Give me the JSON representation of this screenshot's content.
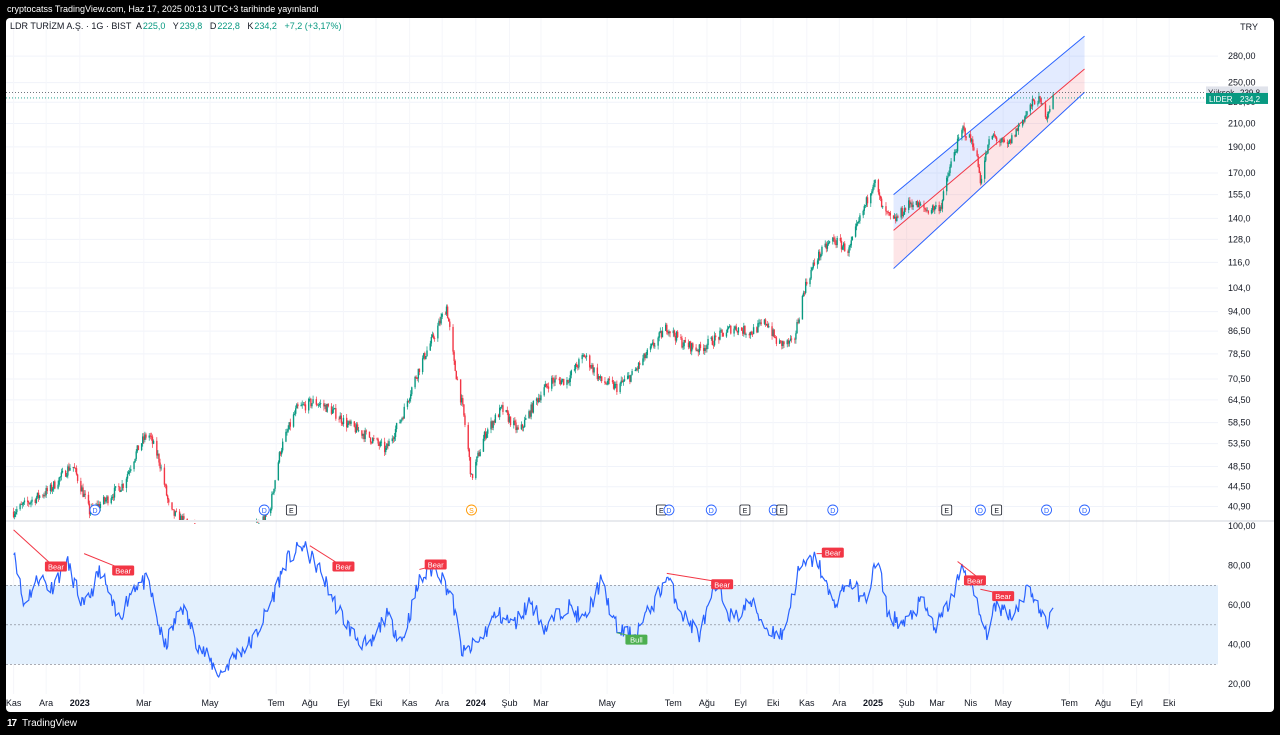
{
  "header": {
    "publish_line": "cryptocatss TradingView.com, Haz 17, 2025 00:13 UTC+3 tarihinde yayınlandı"
  },
  "legend": {
    "symbol": "LDR TURİZM A.Ş. · 1G · BIST",
    "open_label": "A",
    "open_value": "225,0",
    "high_label": "Y",
    "high_value": "239,8",
    "low_label": "D",
    "low_value": "222,8",
    "close_label": "K",
    "close_value": "234,2",
    "change": "+7,2 (+3,17%)"
  },
  "price_axis": {
    "currency": "TRY",
    "high_tag_label": "Yüksek",
    "high_tag_value": "239,8",
    "last_tag_label": "LIDER",
    "last_tag_value": "234,2"
  },
  "footer": {
    "brand": "TradingView",
    "logo": "17"
  },
  "colors": {
    "up": "#089981",
    "down": "#f23645",
    "rsi_line": "#2962ff",
    "channel_upper": "#2962ff",
    "channel_lower": "#f23645",
    "band_fill": "#e3f0fd",
    "bull": "#4caf50",
    "bear": "#f23645"
  },
  "chart_data": [
    {
      "type": "candlestick",
      "title": "",
      "y_scale": "log",
      "y_ticks": [
        280.0,
        250.0,
        230.0,
        210.0,
        190.0,
        170.0,
        155.0,
        140.0,
        128.0,
        116.0,
        104.0,
        94.0,
        86.5,
        78.5,
        70.5,
        64.5,
        58.5,
        53.5,
        48.5,
        44.5,
        40.9
      ],
      "y_tick_labels": [
        "280,00",
        "250,00",
        "230,00",
        "210,00",
        "190,00",
        "170,00",
        "155,0",
        "140,0",
        "128,0",
        "116,0",
        "104,0",
        "94,00",
        "86,50",
        "78,50",
        "70,50",
        "64,50",
        "58,50",
        "53,50",
        "48,50",
        "44,50",
        "40,90"
      ],
      "x_ticks": [
        "Kas",
        "Ara",
        "2023",
        "Mar",
        "May",
        "Tem",
        "Ağu",
        "Eyl",
        "Eki",
        "Kas",
        "Ara",
        "2024",
        "Şub",
        "Mar",
        "May",
        "Tem",
        "Ağu",
        "Eyl",
        "Eki",
        "Kas",
        "Ara",
        "2025",
        "Şub",
        "Mar",
        "Nis",
        "May",
        "Tem",
        "Ağu",
        "Eyl",
        "Eki"
      ],
      "price_path": [
        [
          "2022-11-01",
          40
        ],
        [
          "2022-12-05",
          44
        ],
        [
          "2022-12-25",
          49
        ],
        [
          "2023-01-10",
          40
        ],
        [
          "2023-01-25",
          42
        ],
        [
          "2023-02-10",
          45
        ],
        [
          "2023-02-25",
          53
        ],
        [
          "2023-03-05",
          56
        ],
        [
          "2023-03-15",
          50
        ],
        [
          "2023-03-25",
          40
        ],
        [
          "2023-04-25",
          36
        ],
        [
          "2023-05-25",
          34
        ],
        [
          "2023-06-25",
          40
        ],
        [
          "2023-07-05",
          52
        ],
        [
          "2023-07-20",
          62
        ],
        [
          "2023-08-05",
          64
        ],
        [
          "2023-08-20",
          62
        ],
        [
          "2023-09-05",
          58
        ],
        [
          "2023-09-25",
          55
        ],
        [
          "2023-10-10",
          52
        ],
        [
          "2023-10-25",
          60
        ],
        [
          "2023-11-10",
          74
        ],
        [
          "2023-11-25",
          86
        ],
        [
          "2023-12-05",
          96
        ],
        [
          "2023-12-12",
          75
        ],
        [
          "2023-12-20",
          62
        ],
        [
          "2023-12-28",
          46
        ],
        [
          "2024-01-10",
          56
        ],
        [
          "2024-01-25",
          62
        ],
        [
          "2024-02-10",
          56
        ],
        [
          "2024-02-25",
          64
        ],
        [
          "2024-03-10",
          70
        ],
        [
          "2024-03-25",
          70
        ],
        [
          "2024-04-10",
          78
        ],
        [
          "2024-04-25",
          70
        ],
        [
          "2024-05-10",
          68
        ],
        [
          "2024-05-25",
          72
        ],
        [
          "2024-06-10",
          80
        ],
        [
          "2024-06-25",
          88
        ],
        [
          "2024-07-10",
          82
        ],
        [
          "2024-07-25",
          80
        ],
        [
          "2024-08-10",
          84
        ],
        [
          "2024-08-25",
          88
        ],
        [
          "2024-09-10",
          86
        ],
        [
          "2024-09-25",
          90
        ],
        [
          "2024-10-05",
          82
        ],
        [
          "2024-10-20",
          82
        ],
        [
          "2024-10-30",
          104
        ],
        [
          "2024-11-10",
          118
        ],
        [
          "2024-11-25",
          128
        ],
        [
          "2024-12-10",
          122
        ],
        [
          "2024-12-25",
          148
        ],
        [
          "2025-01-02",
          165
        ],
        [
          "2025-01-10",
          145
        ],
        [
          "2025-01-20",
          138
        ],
        [
          "2025-02-05",
          150
        ],
        [
          "2025-02-20",
          145
        ],
        [
          "2025-03-05",
          148
        ],
        [
          "2025-03-15",
          180
        ],
        [
          "2025-03-25",
          205
        ],
        [
          "2025-04-05",
          190
        ],
        [
          "2025-04-10",
          165
        ],
        [
          "2025-04-20",
          200
        ],
        [
          "2025-05-05",
          190
        ],
        [
          "2025-05-20",
          215
        ],
        [
          "2025-06-01",
          235
        ],
        [
          "2025-06-10",
          218
        ],
        [
          "2025-06-16",
          234.2
        ]
      ],
      "last": 234.2,
      "high": 239.8,
      "channel": {
        "start_date": "2025-01-20",
        "end_date": "2025-07-15",
        "upper": [
          155,
          305
        ],
        "middle": [
          133,
          265
        ],
        "lower": [
          113,
          240
        ]
      },
      "event_markers": [
        {
          "label": "D",
          "date": "2023-01-15"
        },
        {
          "label": "D",
          "date": "2023-06-20"
        },
        {
          "label": "E",
          "date": "2023-07-15"
        },
        {
          "label": "S",
          "date": "2023-12-28"
        },
        {
          "label": "E",
          "date": "2024-06-20"
        },
        {
          "label": "D",
          "date": "2024-06-27"
        },
        {
          "label": "D",
          "date": "2024-08-05"
        },
        {
          "label": "E",
          "date": "2024-09-05"
        },
        {
          "label": "D",
          "date": "2024-10-02"
        },
        {
          "label": "E",
          "date": "2024-10-09"
        },
        {
          "label": "D",
          "date": "2024-11-25"
        },
        {
          "label": "E",
          "date": "2025-03-10"
        },
        {
          "label": "D",
          "date": "2025-04-10"
        },
        {
          "label": "E",
          "date": "2025-04-25"
        },
        {
          "label": "D",
          "date": "2025-06-10"
        },
        {
          "label": "D",
          "date": "2025-07-15"
        }
      ]
    },
    {
      "type": "line",
      "title": "",
      "y_ticks": [
        100.0,
        80.0,
        60.0,
        40.0,
        20.0
      ],
      "y_tick_labels": [
        "100,00",
        "80,00",
        "60,00",
        "40,00",
        "20,00"
      ],
      "band": [
        30,
        70
      ],
      "midline": 50,
      "rsi_path": [
        [
          "2022-11-01",
          90
        ],
        [
          "2022-11-10",
          60
        ],
        [
          "2022-11-25",
          75
        ],
        [
          "2022-12-05",
          68
        ],
        [
          "2022-12-20",
          82
        ],
        [
          "2023-01-05",
          58
        ],
        [
          "2023-01-20",
          78
        ],
        [
          "2023-02-05",
          52
        ],
        [
          "2023-02-20",
          70
        ],
        [
          "2023-03-05",
          72
        ],
        [
          "2023-03-20",
          38
        ],
        [
          "2023-04-05",
          60
        ],
        [
          "2023-04-20",
          40
        ],
        [
          "2023-05-10",
          25
        ],
        [
          "2023-05-25",
          35
        ],
        [
          "2023-06-10",
          42
        ],
        [
          "2023-06-25",
          60
        ],
        [
          "2023-07-10",
          82
        ],
        [
          "2023-07-25",
          90
        ],
        [
          "2023-08-10",
          78
        ],
        [
          "2023-08-25",
          60
        ],
        [
          "2023-09-10",
          45
        ],
        [
          "2023-09-25",
          38
        ],
        [
          "2023-10-10",
          55
        ],
        [
          "2023-10-25",
          42
        ],
        [
          "2023-11-10",
          72
        ],
        [
          "2023-11-25",
          80
        ],
        [
          "2023-12-10",
          64
        ],
        [
          "2023-12-20",
          35
        ],
        [
          "2024-01-05",
          42
        ],
        [
          "2024-01-20",
          56
        ],
        [
          "2024-02-05",
          50
        ],
        [
          "2024-02-20",
          62
        ],
        [
          "2024-03-05",
          48
        ],
        [
          "2024-03-25",
          60
        ],
        [
          "2024-04-10",
          52
        ],
        [
          "2024-04-25",
          72
        ],
        [
          "2024-05-10",
          48
        ],
        [
          "2024-05-25",
          44
        ],
        [
          "2024-06-10",
          58
        ],
        [
          "2024-06-25",
          74
        ],
        [
          "2024-07-10",
          55
        ],
        [
          "2024-07-25",
          45
        ],
        [
          "2024-08-10",
          70
        ],
        [
          "2024-08-25",
          52
        ],
        [
          "2024-09-10",
          62
        ],
        [
          "2024-09-25",
          48
        ],
        [
          "2024-10-10",
          45
        ],
        [
          "2024-10-25",
          78
        ],
        [
          "2024-11-10",
          84
        ],
        [
          "2024-11-25",
          60
        ],
        [
          "2024-12-10",
          72
        ],
        [
          "2024-12-25",
          62
        ],
        [
          "2025-01-05",
          84
        ],
        [
          "2025-01-15",
          55
        ],
        [
          "2025-01-30",
          50
        ],
        [
          "2025-02-15",
          62
        ],
        [
          "2025-02-28",
          48
        ],
        [
          "2025-03-15",
          64
        ],
        [
          "2025-03-25",
          80
        ],
        [
          "2025-04-05",
          64
        ],
        [
          "2025-04-15",
          45
        ],
        [
          "2025-04-25",
          60
        ],
        [
          "2025-05-10",
          55
        ],
        [
          "2025-05-25",
          70
        ],
        [
          "2025-06-05",
          55
        ],
        [
          "2025-06-10",
          50
        ],
        [
          "2025-06-16",
          58
        ]
      ],
      "divergences": [
        {
          "kind": "Bear",
          "from": [
            "2022-11-01",
            98
          ],
          "to": [
            "2022-12-05",
            81
          ],
          "label_date": "2022-12-10",
          "label_value": 80
        },
        {
          "kind": "Bear",
          "from": [
            "2023-01-05",
            86
          ],
          "to": [
            "2023-02-10",
            78
          ],
          "label_date": "2023-02-10",
          "label_value": 78
        },
        {
          "kind": "Bear",
          "from": [
            "2023-08-01",
            90
          ],
          "to": [
            "2023-08-30",
            80
          ],
          "label_date": "2023-09-01",
          "label_value": 80
        },
        {
          "kind": "Bear",
          "from": [
            "2023-11-10",
            78
          ],
          "to": [
            "2023-11-25",
            80
          ],
          "label_date": "2023-11-25",
          "label_value": 81
        },
        {
          "kind": "Bear",
          "from": [
            "2024-06-25",
            76
          ],
          "to": [
            "2024-08-20",
            71
          ],
          "label_date": "2024-08-15",
          "label_value": 71
        },
        {
          "kind": "Bear",
          "from": [
            "2024-11-10",
            86
          ],
          "to": [
            "2024-11-25",
            86
          ],
          "label_date": "2024-11-25",
          "label_value": 87
        },
        {
          "kind": "Bear",
          "from": [
            "2025-03-20",
            82
          ],
          "to": [
            "2025-04-10",
            73
          ],
          "label_date": "2025-04-05",
          "label_value": 73
        },
        {
          "kind": "Bear",
          "from": [
            "2025-04-10",
            68
          ],
          "to": [
            "2025-05-05",
            65
          ],
          "label_date": "2025-05-01",
          "label_value": 65
        },
        {
          "kind": "Bull",
          "from": [
            "2024-05-10",
            46
          ],
          "to": [
            "2024-05-25",
            44
          ],
          "label_date": "2024-05-28",
          "label_value": 43
        }
      ]
    }
  ]
}
